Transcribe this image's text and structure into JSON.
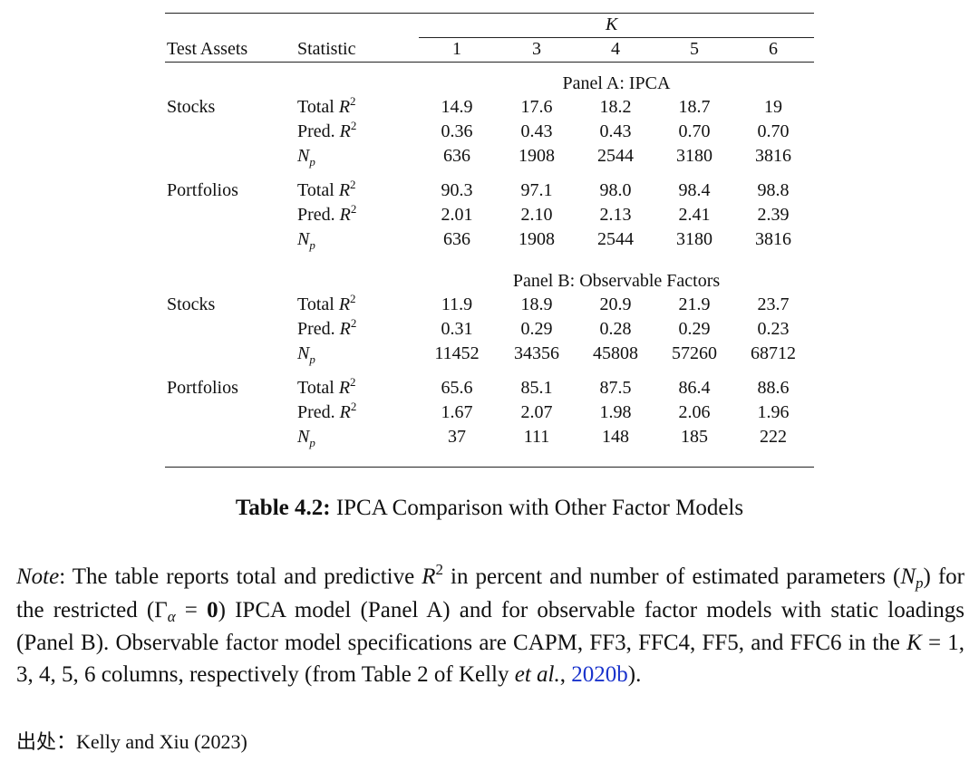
{
  "table": {
    "k_header": "K",
    "col_test_assets": "Test Assets",
    "col_statistic": "Statistic",
    "k_values": [
      "1",
      "3",
      "4",
      "5",
      "6"
    ],
    "panels": [
      {
        "title": "Panel A: IPCA",
        "groups": [
          {
            "asset": "Stocks",
            "rows": [
              {
                "stat": "Total",
                "math": "R",
                "sup": "2",
                "values": [
                  "14.9",
                  "17.6",
                  "18.2",
                  "18.7",
                  "19"
                ]
              },
              {
                "stat": "Pred.",
                "math": "R",
                "sup": "2",
                "values": [
                  "0.36",
                  "0.43",
                  "0.43",
                  "0.70",
                  "0.70"
                ]
              },
              {
                "stat": "",
                "math": "N",
                "sub": "p",
                "values": [
                  "636",
                  "1908",
                  "2544",
                  "3180",
                  "3816"
                ]
              }
            ]
          },
          {
            "asset": "Portfolios",
            "rows": [
              {
                "stat": "Total",
                "math": "R",
                "sup": "2",
                "values": [
                  "90.3",
                  "97.1",
                  "98.0",
                  "98.4",
                  "98.8"
                ]
              },
              {
                "stat": "Pred.",
                "math": "R",
                "sup": "2",
                "values": [
                  "2.01",
                  "2.10",
                  "2.13",
                  "2.41",
                  "2.39"
                ]
              },
              {
                "stat": "",
                "math": "N",
                "sub": "p",
                "values": [
                  "636",
                  "1908",
                  "2544",
                  "3180",
                  "3816"
                ]
              }
            ]
          }
        ]
      },
      {
        "title": "Panel B: Observable Factors",
        "groups": [
          {
            "asset": "Stocks",
            "rows": [
              {
                "stat": "Total",
                "math": "R",
                "sup": "2",
                "values": [
                  "11.9",
                  "18.9",
                  "20.9",
                  "21.9",
                  "23.7"
                ]
              },
              {
                "stat": "Pred.",
                "math": "R",
                "sup": "2",
                "values": [
                  "0.31",
                  "0.29",
                  "0.28",
                  "0.29",
                  "0.23"
                ]
              },
              {
                "stat": "",
                "math": "N",
                "sub": "p",
                "values": [
                  "11452",
                  "34356",
                  "45808",
                  "57260",
                  "68712"
                ]
              }
            ]
          },
          {
            "asset": "Portfolios",
            "rows": [
              {
                "stat": "Total",
                "math": "R",
                "sup": "2",
                "values": [
                  "65.6",
                  "85.1",
                  "87.5",
                  "86.4",
                  "88.6"
                ]
              },
              {
                "stat": "Pred.",
                "math": "R",
                "sup": "2",
                "values": [
                  "1.67",
                  "2.07",
                  "1.98",
                  "2.06",
                  "1.96"
                ]
              },
              {
                "stat": "",
                "math": "N",
                "sub": "p",
                "values": [
                  "37",
                  "111",
                  "148",
                  "185",
                  "222"
                ]
              }
            ]
          }
        ]
      }
    ]
  },
  "caption": {
    "label": "Table 4.2:",
    "text": " IPCA Comparison with Other Factor Models"
  },
  "note": {
    "label": "Note",
    "p1": ": The table reports total and predictive ",
    "r": "R",
    "r_sup": "2",
    "p2": " in percent and number of estimated parameters (",
    "np": "N",
    "np_sub": "p",
    "p3": ") for the restricted (Γ",
    "gamma_sub": "α",
    "p4": " = ",
    "zero": "0",
    "p5": ") IPCA model (Panel A) and for observable factor models with static loadings (Panel B). Observable factor model specifications are CAPM, FF3, FFC4, FF5, and FFC6 in the ",
    "k": "K",
    "p6": " = 1, 3, 4, 5, 6 columns, respectively (from Table 2 of Kelly ",
    "etal": "et al.",
    "p7": ", ",
    "link": "2020b",
    "p8": ")."
  },
  "source": {
    "label": "出处：",
    "text": "Kelly and Xiu (2023)"
  }
}
